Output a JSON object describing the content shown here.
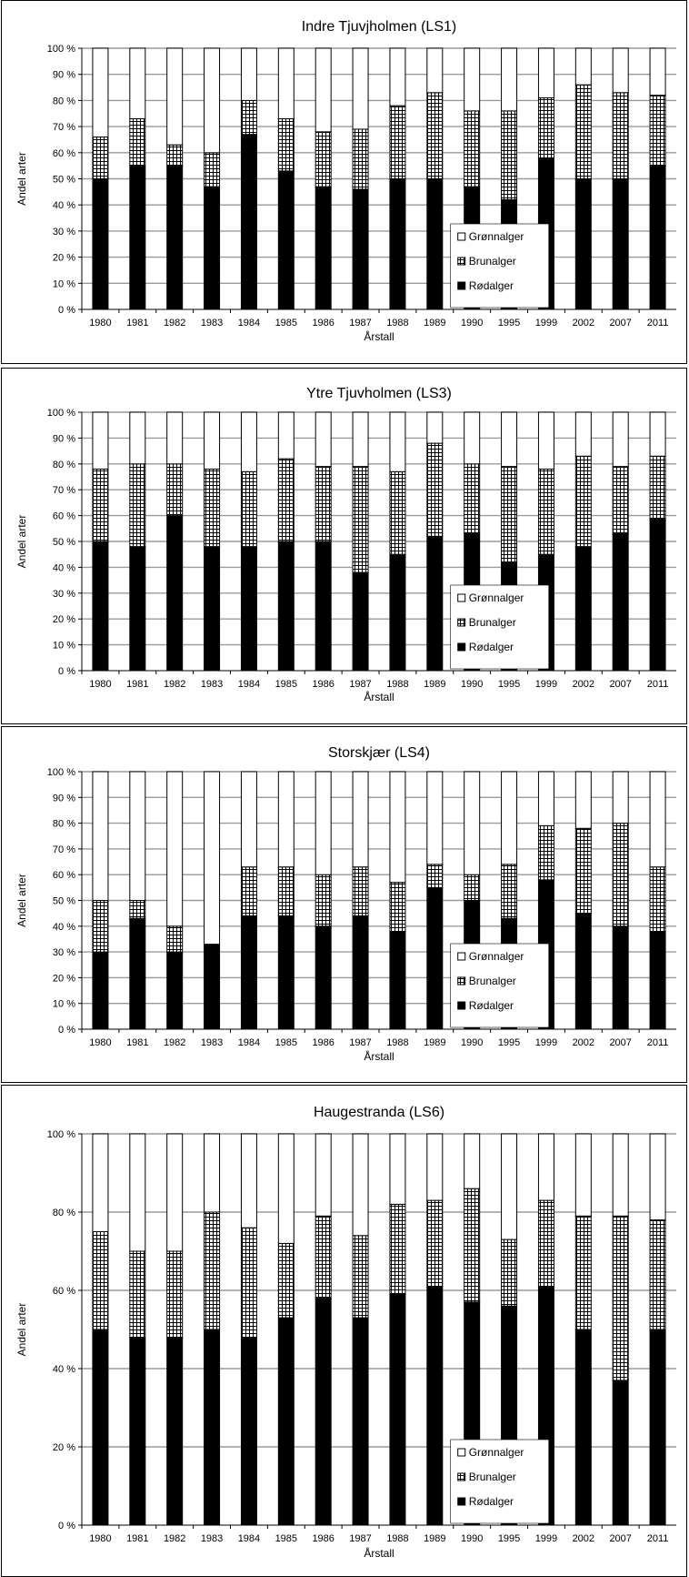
{
  "chart_data": [
    {
      "type": "bar",
      "stacked": "percent",
      "title": "Indre Tjuvjholmen (LS1)",
      "xlabel": "Årstall",
      "ylabel": "Andel arter",
      "categories": [
        "1980",
        "1981",
        "1982",
        "1983",
        "1984",
        "1985",
        "1986",
        "1987",
        "1988",
        "1989",
        "1990",
        "1995",
        "1999",
        "2002",
        "2007",
        "2011"
      ],
      "ylim": [
        0,
        100
      ],
      "yticks": [
        "0 %",
        "10 %",
        "20 %",
        "30 %",
        "40 %",
        "50 %",
        "60 %",
        "70 %",
        "80 %",
        "90 %",
        "100 %"
      ],
      "grid": true,
      "legend_position": "lower-right",
      "series": [
        {
          "name": "Rødalger",
          "values": [
            50,
            55,
            55,
            47,
            67,
            53,
            47,
            46,
            50,
            50,
            47,
            42,
            58,
            50,
            50,
            55
          ]
        },
        {
          "name": "Brunalger",
          "values": [
            16,
            18,
            8,
            13,
            13,
            20,
            21,
            23,
            28,
            33,
            29,
            34,
            23,
            36,
            33,
            27
          ]
        },
        {
          "name": "Grønnalger",
          "values": [
            34,
            27,
            37,
            40,
            20,
            27,
            32,
            31,
            22,
            17,
            24,
            24,
            19,
            14,
            17,
            18
          ]
        }
      ]
    },
    {
      "type": "bar",
      "stacked": "percent",
      "title": "Ytre Tjuvholmen (LS3)",
      "xlabel": "Årstall",
      "ylabel": "Andel arter",
      "categories": [
        "1980",
        "1981",
        "1982",
        "1983",
        "1984",
        "1985",
        "1986",
        "1987",
        "1988",
        "1989",
        "1990",
        "1995",
        "1999",
        "2002",
        "2007",
        "2011"
      ],
      "ylim": [
        0,
        100
      ],
      "yticks": [
        "0 %",
        "10 %",
        "20 %",
        "30 %",
        "40 %",
        "50 %",
        "60 %",
        "70 %",
        "80 %",
        "90 %",
        "100 %"
      ],
      "grid": true,
      "legend_position": "lower-right",
      "series": [
        {
          "name": "Rødalger",
          "values": [
            50,
            48,
            60,
            48,
            48,
            50,
            50,
            38,
            45,
            52,
            53,
            42,
            45,
            48,
            53,
            59
          ]
        },
        {
          "name": "Brunalger",
          "values": [
            28,
            32,
            20,
            30,
            29,
            32,
            29,
            41,
            32,
            36,
            27,
            37,
            33,
            35,
            26,
            24
          ]
        },
        {
          "name": "Grønnalger",
          "values": [
            22,
            20,
            20,
            22,
            23,
            18,
            21,
            21,
            23,
            12,
            20,
            21,
            22,
            17,
            21,
            17
          ]
        }
      ]
    },
    {
      "type": "bar",
      "stacked": "percent",
      "title": "Storskjær (LS4)",
      "xlabel": "Årstall",
      "ylabel": "Andel arter",
      "categories": [
        "1980",
        "1981",
        "1982",
        "1983",
        "1984",
        "1985",
        "1986",
        "1987",
        "1988",
        "1989",
        "1990",
        "1995",
        "1999",
        "2002",
        "2007",
        "2011"
      ],
      "ylim": [
        0,
        100
      ],
      "yticks": [
        "0 %",
        "10 %",
        "20 %",
        "30 %",
        "40 %",
        "50 %",
        "60 %",
        "70 %",
        "80 %",
        "90 %",
        "100 %"
      ],
      "grid": true,
      "legend_position": "lower-right",
      "series": [
        {
          "name": "Rødalger",
          "values": [
            30,
            43,
            30,
            33,
            44,
            44,
            40,
            44,
            38,
            55,
            50,
            43,
            58,
            45,
            40,
            38
          ]
        },
        {
          "name": "Brunalger",
          "values": [
            20,
            7,
            10,
            0,
            19,
            19,
            20,
            19,
            19,
            9,
            10,
            21,
            21,
            33,
            40,
            25
          ]
        },
        {
          "name": "Grønnalger",
          "values": [
            50,
            50,
            60,
            67,
            37,
            37,
            40,
            37,
            43,
            36,
            40,
            36,
            21,
            22,
            20,
            37
          ]
        }
      ]
    },
    {
      "type": "bar",
      "stacked": "percent",
      "title": "Haugestranda (LS6)",
      "xlabel": "Årstall",
      "ylabel": "Andel arter",
      "categories": [
        "1980",
        "1981",
        "1982",
        "1983",
        "1984",
        "1985",
        "1986",
        "1987",
        "1988",
        "1989",
        "1990",
        "1995",
        "1999",
        "2002",
        "2007",
        "2011"
      ],
      "ylim": [
        0,
        100
      ],
      "yticks": [
        "0 %",
        "20 %",
        "40 %",
        "60 %",
        "80 %",
        "100 %"
      ],
      "grid": true,
      "legend_position": "lower-right",
      "series": [
        {
          "name": "Rødalger",
          "values": [
            50,
            48,
            48,
            50,
            48,
            53,
            58,
            53,
            59,
            61,
            57,
            56,
            61,
            50,
            37,
            50
          ]
        },
        {
          "name": "Brunalger",
          "values": [
            25,
            22,
            22,
            30,
            28,
            19,
            21,
            21,
            23,
            22,
            29,
            17,
            22,
            29,
            42,
            28
          ]
        },
        {
          "name": "Grønnalger",
          "values": [
            25,
            30,
            30,
            20,
            24,
            28,
            21,
            26,
            18,
            17,
            14,
            27,
            17,
            21,
            21,
            22
          ]
        }
      ]
    }
  ]
}
